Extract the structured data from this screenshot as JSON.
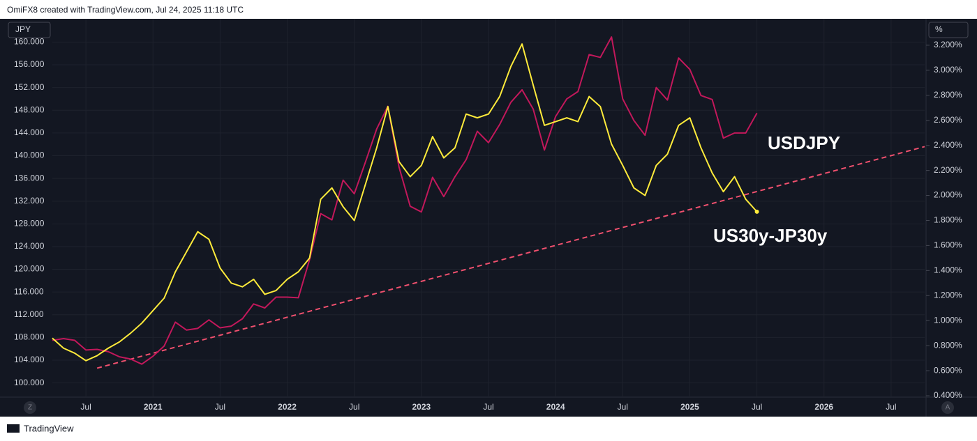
{
  "header": "OmiFX8 created with TradingView.com, Jul 24, 2025 11:18 UTC",
  "footer": "TradingView",
  "buttons": [
    "Z",
    "A"
  ],
  "chart_data": {
    "type": "line",
    "y_unit": "JPY",
    "y2_unit": "%",
    "grid": true,
    "x": [
      "2020-04",
      "2020-05",
      "2020-06",
      "2020-07",
      "2020-08",
      "2020-09",
      "2020-10",
      "2020-11",
      "2020-12",
      "2021-01",
      "2021-02",
      "2021-03",
      "2021-04",
      "2021-05",
      "2021-06",
      "2021-07",
      "2021-08",
      "2021-09",
      "2021-10",
      "2021-11",
      "2021-12",
      "2022-01",
      "2022-02",
      "2022-03",
      "2022-04",
      "2022-05",
      "2022-06",
      "2022-07",
      "2022-08",
      "2022-09",
      "2022-10",
      "2022-11",
      "2022-12",
      "2023-01",
      "2023-02",
      "2023-03",
      "2023-04",
      "2023-05",
      "2023-06",
      "2023-07",
      "2023-08",
      "2023-09",
      "2023-10",
      "2023-11",
      "2023-12",
      "2024-01",
      "2024-02",
      "2024-03",
      "2024-04",
      "2024-05",
      "2024-06",
      "2024-07",
      "2024-08",
      "2024-09",
      "2024-10",
      "2024-11",
      "2024-12",
      "2025-01",
      "2025-02",
      "2025-03",
      "2025-04",
      "2025-05",
      "2025-06",
      "2025-07"
    ],
    "xlim": [
      "2020-04",
      "2026-10"
    ],
    "xticks": [
      {
        "value": "2020-07",
        "label": "Jul"
      },
      {
        "value": "2021-01",
        "label": "2021"
      },
      {
        "value": "2021-07",
        "label": "Jul"
      },
      {
        "value": "2022-01",
        "label": "2022"
      },
      {
        "value": "2022-07",
        "label": "Jul"
      },
      {
        "value": "2023-01",
        "label": "2023"
      },
      {
        "value": "2023-07",
        "label": "Jul"
      },
      {
        "value": "2024-01",
        "label": "2024"
      },
      {
        "value": "2024-07",
        "label": "Jul"
      },
      {
        "value": "2025-01",
        "label": "2025"
      },
      {
        "value": "2025-07",
        "label": "Jul"
      },
      {
        "value": "2026-01",
        "label": "2026"
      },
      {
        "value": "2026-07",
        "label": "Jul"
      }
    ],
    "ylim": [
      97.5,
      164.1
    ],
    "yticks": [
      {
        "value": 100,
        "label": "100.000"
      },
      {
        "value": 104,
        "label": "104.000"
      },
      {
        "value": 108,
        "label": "108.000"
      },
      {
        "value": 112,
        "label": "112.000"
      },
      {
        "value": 116,
        "label": "116.000"
      },
      {
        "value": 120,
        "label": "120.000"
      },
      {
        "value": 124,
        "label": "124.000"
      },
      {
        "value": 128,
        "label": "128.000"
      },
      {
        "value": 132,
        "label": "132.000"
      },
      {
        "value": 136,
        "label": "136.000"
      },
      {
        "value": 140,
        "label": "140.000"
      },
      {
        "value": 144,
        "label": "144.000"
      },
      {
        "value": 148,
        "label": "148.000"
      },
      {
        "value": 152,
        "label": "152.000"
      },
      {
        "value": 156,
        "label": "156.000"
      },
      {
        "value": 160,
        "label": "160.000"
      }
    ],
    "y2lim": [
      0.389,
      3.411
    ],
    "y2ticks": [
      {
        "value": 0.4,
        "label": "0.400%"
      },
      {
        "value": 0.6,
        "label": "0.600%"
      },
      {
        "value": 0.8,
        "label": "0.800%"
      },
      {
        "value": 1.0,
        "label": "1.000%"
      },
      {
        "value": 1.2,
        "label": "1.200%"
      },
      {
        "value": 1.4,
        "label": "1.400%"
      },
      {
        "value": 1.6,
        "label": "1.600%"
      },
      {
        "value": 1.8,
        "label": "1.800%"
      },
      {
        "value": 2.0,
        "label": "2.000%"
      },
      {
        "value": 2.2,
        "label": "2.200%"
      },
      {
        "value": 2.4,
        "label": "2.400%"
      },
      {
        "value": 2.6,
        "label": "2.600%"
      },
      {
        "value": 2.8,
        "label": "2.800%"
      },
      {
        "value": 3.0,
        "label": "3.000%"
      },
      {
        "value": 3.2,
        "label": "3.200%"
      }
    ],
    "series": [
      {
        "name": "USDJPY",
        "color": "#c2185b",
        "axis": "y",
        "values": [
          107.5,
          107.8,
          107.5,
          105.8,
          105.9,
          105.5,
          104.6,
          104.2,
          103.3,
          104.7,
          106.5,
          110.7,
          109.3,
          109.6,
          111.1,
          109.7,
          110.0,
          111.3,
          113.9,
          113.2,
          115.1,
          115.1,
          115.0,
          121.7,
          129.8,
          128.7,
          135.7,
          133.3,
          138.9,
          144.7,
          148.7,
          138.0,
          131.1,
          130.1,
          136.2,
          132.8,
          136.3,
          139.3,
          144.3,
          142.3,
          145.5,
          149.4,
          151.6,
          148.2,
          141.0,
          146.9,
          150.0,
          151.3,
          157.8,
          157.3,
          160.9,
          150.0,
          146.2,
          143.6,
          152.0,
          149.8,
          157.2,
          155.2,
          150.6,
          149.9,
          143.1,
          144.0,
          144.0,
          147.5
        ]
      },
      {
        "name": "US30y-JP30y",
        "color": "#ffeb3b",
        "axis": "y2",
        "values": [
          0.86,
          0.78,
          0.74,
          0.68,
          0.72,
          0.78,
          0.83,
          0.9,
          0.98,
          1.08,
          1.18,
          1.39,
          1.55,
          1.71,
          1.65,
          1.42,
          1.3,
          1.27,
          1.33,
          1.21,
          1.24,
          1.33,
          1.39,
          1.5,
          1.97,
          2.06,
          1.91,
          1.8,
          2.09,
          2.38,
          2.71,
          2.27,
          2.15,
          2.24,
          2.47,
          2.3,
          2.38,
          2.65,
          2.62,
          2.65,
          2.79,
          3.03,
          3.21,
          2.88,
          2.56,
          2.59,
          2.62,
          2.59,
          2.79,
          2.71,
          2.41,
          2.24,
          2.06,
          2.0,
          2.24,
          2.33,
          2.56,
          2.62,
          2.38,
          2.18,
          2.03,
          2.15,
          1.97,
          1.87
        ]
      }
    ],
    "trendline": {
      "x": [
        "2020-08",
        "2026-10"
      ],
      "values": [
        102.6,
        141.6
      ],
      "color": "#f0506e"
    }
  }
}
